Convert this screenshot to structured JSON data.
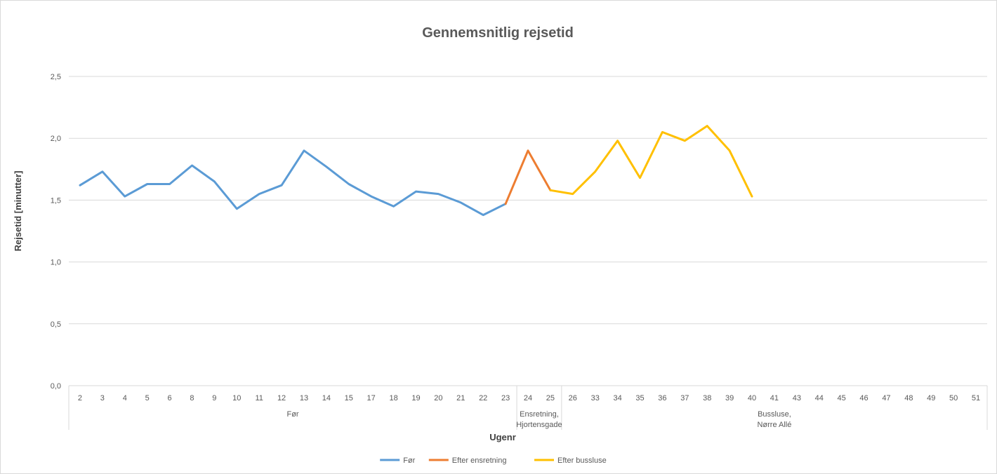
{
  "chart_data": {
    "type": "line",
    "title": "Gennemsnitlig rejsetid",
    "xlabel": "Ugenr",
    "ylabel": "Rejsetid [minutter]",
    "ylim": [
      0,
      2.5
    ],
    "yticks": [
      "0,0",
      "0,5",
      "1,0",
      "1,5",
      "2,0",
      "2,5"
    ],
    "grid": "horizontal",
    "legend_position": "bottom",
    "categories": [
      "2",
      "3",
      "4",
      "5",
      "6",
      "8",
      "9",
      "10",
      "11",
      "12",
      "13",
      "14",
      "15",
      "17",
      "18",
      "19",
      "20",
      "21",
      "22",
      "23",
      "24",
      "25",
      "26",
      "33",
      "34",
      "35",
      "36",
      "37",
      "38",
      "39",
      "40",
      "41",
      "43",
      "44",
      "45",
      "46",
      "47",
      "48",
      "49",
      "50",
      "51"
    ],
    "groups": [
      {
        "label": "Før",
        "count": 20
      },
      {
        "label": "Ensretning,\nHjortensgade",
        "count": 2
      },
      {
        "label": "Bussluse,\nNørre Allé",
        "count": 19
      }
    ],
    "series": [
      {
        "name": "Før",
        "color": "#5b9bd5",
        "values": [
          1.62,
          1.73,
          1.53,
          1.63,
          1.63,
          1.78,
          1.65,
          1.43,
          1.55,
          1.62,
          1.9,
          1.77,
          1.63,
          1.53,
          1.45,
          1.57,
          1.55,
          1.48,
          1.38,
          1.47,
          null,
          null,
          null,
          null,
          null,
          null,
          null,
          null,
          null,
          null,
          null,
          null,
          null,
          null,
          null,
          null,
          null,
          null,
          null,
          null,
          null
        ]
      },
      {
        "name": "Efter ensretning",
        "color": "#ed7d31",
        "values": [
          null,
          null,
          null,
          null,
          null,
          null,
          null,
          null,
          null,
          null,
          null,
          null,
          null,
          null,
          null,
          null,
          null,
          null,
          null,
          1.47,
          1.9,
          1.58,
          null,
          null,
          null,
          null,
          null,
          null,
          null,
          null,
          null,
          null,
          null,
          null,
          null,
          null,
          null,
          null,
          null,
          null,
          null
        ]
      },
      {
        "name": "Efter bussluse",
        "color": "#ffc000",
        "values": [
          null,
          null,
          null,
          null,
          null,
          null,
          null,
          null,
          null,
          null,
          null,
          null,
          null,
          null,
          null,
          null,
          null,
          null,
          null,
          null,
          null,
          1.58,
          1.55,
          1.73,
          1.98,
          1.68,
          2.05,
          1.98,
          2.1,
          1.9,
          1.53,
          null,
          null,
          null,
          null,
          null,
          null,
          null,
          null,
          null,
          null
        ]
      }
    ]
  }
}
